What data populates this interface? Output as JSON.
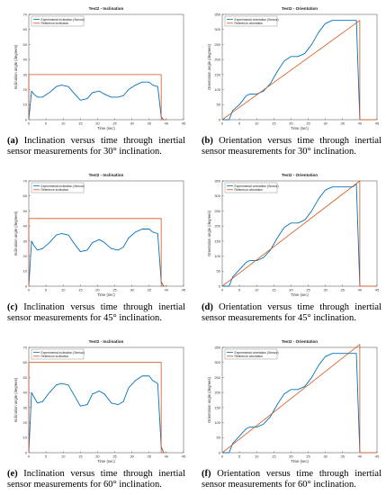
{
  "colors": {
    "experimental": "#0072BD",
    "reference": "#D95319",
    "axis": "#000000"
  },
  "chart_data": [
    {
      "type": "line",
      "title": "Test2 - Inclination",
      "xlabel": "Time (sec)",
      "ylabel": "Inclination angle (degrees)",
      "xlim": [
        0,
        45
      ],
      "ylim": [
        0,
        70
      ],
      "xticks": [
        "0",
        "5",
        "10",
        "15",
        "20",
        "25",
        "30",
        "35",
        "40",
        "45"
      ],
      "yticks": [
        "0",
        "10",
        "20",
        "30",
        "40",
        "50",
        "60",
        "70"
      ],
      "legend_position": "top-left",
      "series": [
        {
          "name": "Experimental inclination (Sensor)",
          "x": [
            0,
            0.8,
            1.5,
            2.5,
            4,
            6,
            8,
            9.5,
            11.5,
            13,
            15,
            17,
            18.5,
            20.5,
            22,
            24,
            26,
            27.5,
            29,
            31,
            33,
            35,
            36,
            37.5,
            38.5,
            39.2
          ],
          "y": [
            0,
            19,
            17,
            15,
            15,
            18,
            22,
            23,
            22,
            18,
            13,
            14,
            18,
            19,
            17,
            15,
            15,
            16,
            20,
            23,
            25,
            25,
            23,
            22,
            2,
            0
          ]
        },
        {
          "name": "Reference inclination",
          "x": [
            0,
            0,
            38.5,
            38.5,
            40
          ],
          "y": [
            0,
            30,
            30,
            0,
            0
          ]
        }
      ],
      "caption": {
        "label": "(a)",
        "text": " Inclination versus time through inertial sensor measurements for 30° inclination."
      }
    },
    {
      "type": "line",
      "title": "Test2 - Orientation",
      "xlabel": "Time (sec)",
      "ylabel": "Orientation angle (degrees)",
      "xlim": [
        0,
        45
      ],
      "ylim": [
        0,
        350
      ],
      "xticks": [
        "0",
        "5",
        "10",
        "15",
        "20",
        "25",
        "30",
        "35",
        "40",
        "45"
      ],
      "yticks": [
        "0",
        "50",
        "100",
        "150",
        "200",
        "250",
        "300",
        "350"
      ],
      "legend_position": "top-left",
      "series": [
        {
          "name": "Experimental orientation (Sensor)",
          "x": [
            0,
            1,
            2,
            3,
            5,
            7,
            8,
            10,
            12,
            14,
            16,
            18,
            20,
            22,
            24,
            26,
            28,
            30,
            32,
            34,
            36,
            38,
            39,
            40
          ],
          "y": [
            0,
            0,
            0,
            30,
            50,
            80,
            85,
            85,
            95,
            120,
            160,
            195,
            210,
            210,
            220,
            250,
            290,
            320,
            330,
            330,
            330,
            330,
            330,
            0
          ]
        },
        {
          "name": "Reference orientation",
          "x": [
            0,
            40,
            40,
            45
          ],
          "y": [
            0,
            330,
            0,
            0
          ]
        }
      ],
      "caption": {
        "label": "(b)",
        "text": " Orientation versus time through inertial sensor measurements for 30° inclination."
      }
    },
    {
      "type": "line",
      "title": "Test2 - Inclination",
      "xlabel": "Time (sec)",
      "ylabel": "Inclination angle (degrees)",
      "xlim": [
        0,
        45
      ],
      "ylim": [
        0,
        70
      ],
      "xticks": [
        "0",
        "5",
        "10",
        "15",
        "20",
        "25",
        "30",
        "35",
        "40",
        "45"
      ],
      "yticks": [
        "0",
        "10",
        "20",
        "30",
        "40",
        "50",
        "60",
        "70"
      ],
      "legend_position": "top-left",
      "series": [
        {
          "name": "Experimental inclination (Sensor)",
          "x": [
            0,
            0.8,
            1.5,
            2.5,
            4,
            6,
            8,
            9.5,
            11.5,
            13,
            15,
            17,
            18.5,
            20.5,
            22,
            24,
            26,
            27.5,
            29,
            31,
            33,
            35,
            36,
            37.5,
            38.5,
            39.2
          ],
          "y": [
            0,
            30,
            27,
            24,
            25,
            29,
            34,
            35,
            34,
            29,
            23,
            24,
            29,
            31,
            29,
            25,
            24,
            26,
            32,
            36,
            38,
            38,
            36,
            35,
            3,
            0
          ]
        },
        {
          "name": "Reference inclination",
          "x": [
            0,
            0,
            38.5,
            38.5,
            40
          ],
          "y": [
            0,
            45,
            45,
            0,
            0
          ]
        }
      ],
      "caption": {
        "label": "(c)",
        "text": " Inclination versus time through inertial sensor measurements for 45° inclination."
      }
    },
    {
      "type": "line",
      "title": "Test2 - Orientation",
      "xlabel": "Time (sec)",
      "ylabel": "Orientation angle (degrees)",
      "xlim": [
        0,
        45
      ],
      "ylim": [
        0,
        350
      ],
      "xticks": [
        "0",
        "5",
        "10",
        "15",
        "20",
        "25",
        "30",
        "35",
        "40",
        "45"
      ],
      "yticks": [
        "0",
        "50",
        "100",
        "150",
        "200",
        "250",
        "300",
        "350"
      ],
      "legend_position": "top-left",
      "series": [
        {
          "name": "Experimental orientation (Sensor)",
          "x": [
            0,
            1,
            2,
            3,
            5,
            7,
            8,
            10,
            12,
            14,
            16,
            18,
            20,
            22,
            24,
            26,
            28,
            30,
            32,
            34,
            36,
            38,
            39,
            40
          ],
          "y": [
            0,
            0,
            0,
            30,
            55,
            80,
            85,
            85,
            95,
            120,
            160,
            195,
            210,
            210,
            220,
            250,
            290,
            320,
            330,
            330,
            330,
            330,
            340,
            0
          ]
        },
        {
          "name": "Reference orientation",
          "x": [
            0,
            40,
            40,
            45
          ],
          "y": [
            0,
            350,
            0,
            0
          ]
        }
      ],
      "caption": {
        "label": "(d)",
        "text": " Orientation versus time through inertial sensor measurements for 45° inclination."
      }
    },
    {
      "type": "line",
      "title": "Test2 - Inclination",
      "xlabel": "Time (sec)",
      "ylabel": "Inclination angle (degrees)",
      "xlim": [
        0,
        45
      ],
      "ylim": [
        0,
        70
      ],
      "xticks": [
        "0",
        "5",
        "10",
        "15",
        "20",
        "25",
        "30",
        "35",
        "40",
        "45"
      ],
      "yticks": [
        "0",
        "10",
        "20",
        "30",
        "40",
        "50",
        "60",
        "70"
      ],
      "legend_position": "top-left",
      "series": [
        {
          "name": "Experimental inclination (Sensor)",
          "x": [
            0,
            0.8,
            1.5,
            2.5,
            4,
            6,
            8,
            9.5,
            11.5,
            13,
            15,
            17,
            18.5,
            20.5,
            22,
            24,
            26,
            27.5,
            29,
            31,
            33,
            35,
            36,
            37.5,
            38.5,
            39.2
          ],
          "y": [
            0,
            40,
            37,
            33,
            34,
            40,
            45,
            46,
            45,
            39,
            31,
            32,
            39,
            41,
            39,
            33,
            32,
            34,
            43,
            48,
            51,
            51,
            48,
            46,
            4,
            0
          ]
        },
        {
          "name": "Reference inclination",
          "x": [
            0,
            0,
            38.5,
            38.5,
            40
          ],
          "y": [
            0,
            60,
            60,
            0,
            0
          ]
        }
      ],
      "caption": {
        "label": "(e)",
        "text": " Inclination versus time through inertial sensor measurements for 60° inclination."
      }
    },
    {
      "type": "line",
      "title": "Test2 - Orientation",
      "xlabel": "Time (sec)",
      "ylabel": "Orientation angle (degrees)",
      "xlim": [
        0,
        45
      ],
      "ylim": [
        0,
        350
      ],
      "xticks": [
        "0",
        "5",
        "10",
        "15",
        "20",
        "25",
        "30",
        "35",
        "40",
        "45"
      ],
      "yticks": [
        "0",
        "50",
        "100",
        "150",
        "200",
        "250",
        "300",
        "350"
      ],
      "legend_position": "top-left",
      "series": [
        {
          "name": "Experimental orientation (Sensor)",
          "x": [
            0,
            1,
            2,
            3,
            5,
            7,
            8,
            10,
            12,
            14,
            16,
            18,
            20,
            22,
            24,
            26,
            28,
            30,
            32,
            34,
            36,
            38,
            39,
            40
          ],
          "y": [
            0,
            0,
            0,
            30,
            55,
            80,
            85,
            85,
            95,
            120,
            160,
            195,
            210,
            210,
            220,
            250,
            290,
            320,
            330,
            330,
            330,
            330,
            330,
            0
          ]
        },
        {
          "name": "Reference orientation",
          "x": [
            0,
            40,
            40,
            45
          ],
          "y": [
            0,
            360,
            0,
            0
          ]
        }
      ],
      "caption": {
        "label": "(f)",
        "text": " Orientation versus time through inertial sensor measurements for 60° inclination."
      }
    }
  ]
}
